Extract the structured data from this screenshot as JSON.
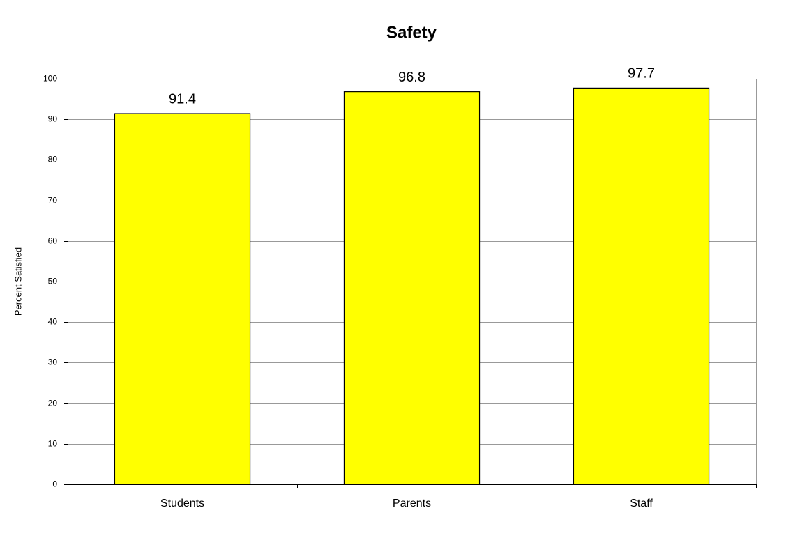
{
  "chart_data": {
    "type": "bar",
    "title": "Safety",
    "ylabel": "Percent Satisfied",
    "categories": [
      "Students",
      "Parents",
      "Staff"
    ],
    "values": [
      91.4,
      96.8,
      97.7
    ],
    "color": "#ffff00",
    "ylim": [
      0,
      100
    ],
    "yticks": [
      0,
      10,
      20,
      30,
      40,
      50,
      60,
      70,
      80,
      90,
      100
    ],
    "grid": true
  }
}
